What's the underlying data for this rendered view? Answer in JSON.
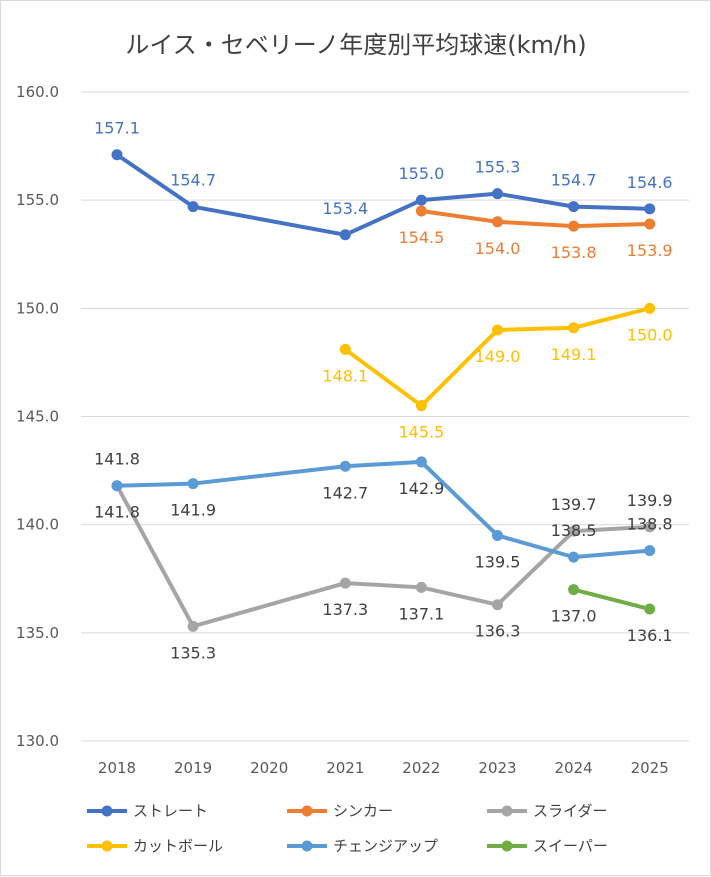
{
  "chart_data": {
    "type": "line",
    "title": "ルイス・セベリーノ年度別平均球速(km/h)",
    "xlabel": "",
    "ylabel": "",
    "categories": [
      "2018",
      "2019",
      "2020",
      "2021",
      "2022",
      "2023",
      "2024",
      "2025"
    ],
    "y_tick_labels": [
      "160.0",
      "155.0",
      "150.0",
      "145.0",
      "140.0",
      "135.0",
      "130.0"
    ],
    "ylim": [
      130,
      160
    ],
    "grid": true,
    "legend_position": "bottom",
    "series": [
      {
        "name": "ストレート",
        "color": "#4472c4",
        "values": [
          157.1,
          154.7,
          null,
          153.4,
          155.0,
          155.3,
          154.7,
          154.6
        ],
        "labels": [
          "157.1",
          "154.7",
          null,
          "153.4",
          "155.0",
          "155.3",
          "154.7",
          "154.6"
        ],
        "label_pos": [
          "above",
          "above",
          null,
          "above",
          "above",
          "above",
          "above",
          "above"
        ]
      },
      {
        "name": "シンカー",
        "color": "#ed7d31",
        "values": [
          null,
          null,
          null,
          null,
          154.5,
          154.0,
          153.8,
          153.9
        ],
        "labels": [
          null,
          null,
          null,
          null,
          "154.5",
          "154.0",
          "153.8",
          "153.9"
        ],
        "label_pos": [
          null,
          null,
          null,
          null,
          "below",
          "below",
          "below",
          "below"
        ]
      },
      {
        "name": "スライダー",
        "color": "#a5a5a5",
        "values": [
          141.8,
          135.3,
          null,
          137.3,
          137.1,
          136.3,
          139.7,
          139.9
        ],
        "labels": [
          "141.8",
          "135.3",
          null,
          "137.3",
          "137.1",
          "136.3",
          "139.7",
          "139.9"
        ],
        "label_pos": [
          "above",
          "below",
          null,
          "below",
          "below",
          "below",
          "above",
          "above"
        ]
      },
      {
        "name": "カットボール",
        "color": "#ffc000",
        "values": [
          null,
          null,
          null,
          148.1,
          145.5,
          149.0,
          149.1,
          150.0
        ],
        "labels": [
          null,
          null,
          null,
          "148.1",
          "145.5",
          "149.0",
          "149.1",
          "150.0"
        ],
        "label_pos": [
          null,
          null,
          null,
          "below",
          "below",
          "below",
          "below",
          "below"
        ]
      },
      {
        "name": "チェンジアップ",
        "color": "#5b9bd5",
        "values": [
          141.8,
          141.9,
          null,
          142.7,
          142.9,
          139.5,
          138.5,
          138.8
        ],
        "labels": [
          "141.8",
          "141.9",
          null,
          "142.7",
          "142.9",
          "139.5",
          "138.5",
          "138.8"
        ],
        "label_pos": [
          "below",
          "below",
          null,
          "below",
          "below",
          "below",
          "above",
          "above"
        ]
      },
      {
        "name": "スイーパー",
        "color": "#70ad47",
        "values": [
          null,
          null,
          null,
          null,
          null,
          null,
          137.0,
          136.1
        ],
        "labels": [
          null,
          null,
          null,
          null,
          null,
          null,
          "137.0",
          "136.1"
        ],
        "label_pos": [
          null,
          null,
          null,
          null,
          null,
          null,
          "below",
          "below"
        ]
      }
    ]
  }
}
